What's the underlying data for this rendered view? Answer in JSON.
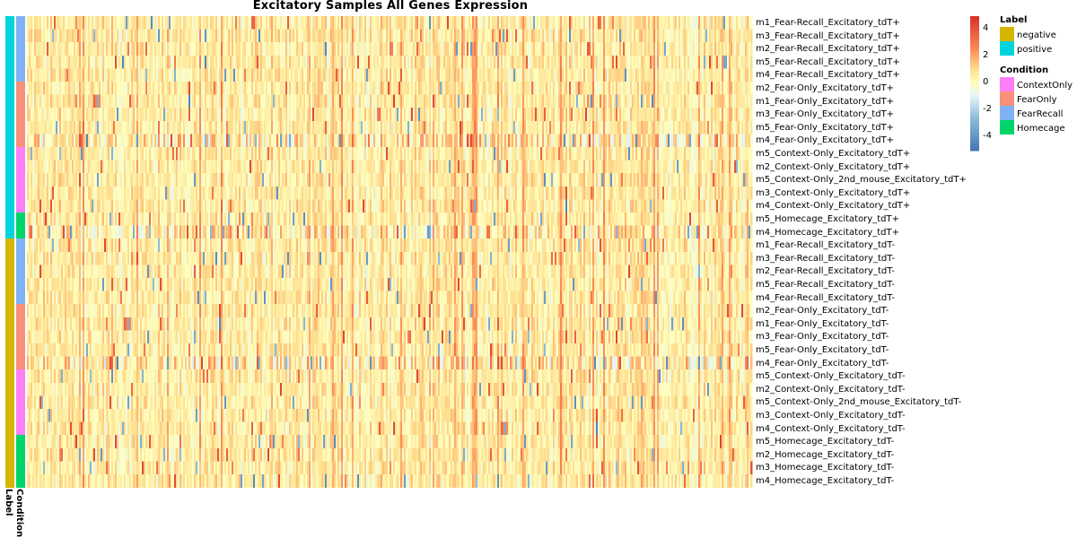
{
  "chart_data": {
    "type": "heatmap",
    "title": "Excitatory Samples All Genes Expression",
    "color_scale": {
      "min": -5,
      "max": 5,
      "low_color": "#4575b4",
      "mid_color": "#ffffbf",
      "high_color": "#d73027",
      "ticks": [
        "4",
        "2",
        "0",
        "-2",
        "-4"
      ]
    },
    "annotation_columns": [
      "Label",
      "Condition"
    ],
    "legends": {
      "label": {
        "title": "Label",
        "items": [
          {
            "name": "negative",
            "color": "#d4b600"
          },
          {
            "name": "positive",
            "color": "#00d4dc"
          }
        ]
      },
      "condition": {
        "title": "Condition",
        "items": [
          {
            "name": "ContextOnly",
            "color": "#ff7ff6"
          },
          {
            "name": "FearOnly",
            "color": "#f8907c"
          },
          {
            "name": "FearRecall",
            "color": "#7fb2f5"
          },
          {
            "name": "Homecage",
            "color": "#00d56a"
          }
        ]
      }
    },
    "rows": [
      {
        "name": "m1_Fear-Recall_Excitatory_tdT+",
        "label": "positive",
        "condition": "FearRecall"
      },
      {
        "name": "m3_Fear-Recall_Excitatory_tdT+",
        "label": "positive",
        "condition": "FearRecall"
      },
      {
        "name": "m2_Fear-Recall_Excitatory_tdT+",
        "label": "positive",
        "condition": "FearRecall"
      },
      {
        "name": "m5_Fear-Recall_Excitatory_tdT+",
        "label": "positive",
        "condition": "FearRecall"
      },
      {
        "name": "m4_Fear-Recall_Excitatory_tdT+",
        "label": "positive",
        "condition": "FearRecall"
      },
      {
        "name": "m2_Fear-Only_Excitatory_tdT+",
        "label": "positive",
        "condition": "FearOnly"
      },
      {
        "name": "m1_Fear-Only_Excitatory_tdT+",
        "label": "positive",
        "condition": "FearOnly"
      },
      {
        "name": "m3_Fear-Only_Excitatory_tdT+",
        "label": "positive",
        "condition": "FearOnly"
      },
      {
        "name": "m5_Fear-Only_Excitatory_tdT+",
        "label": "positive",
        "condition": "FearOnly"
      },
      {
        "name": "m4_Fear-Only_Excitatory_tdT+",
        "label": "positive",
        "condition": "FearOnly"
      },
      {
        "name": "m5_Context-Only_Excitatory_tdT+",
        "label": "positive",
        "condition": "ContextOnly"
      },
      {
        "name": "m2_Context-Only_Excitatory_tdT+",
        "label": "positive",
        "condition": "ContextOnly"
      },
      {
        "name": "m5_Context-Only_2nd_mouse_Excitatory_tdT+",
        "label": "positive",
        "condition": "ContextOnly"
      },
      {
        "name": "m3_Context-Only_Excitatory_tdT+",
        "label": "positive",
        "condition": "ContextOnly"
      },
      {
        "name": "m4_Context-Only_Excitatory_tdT+",
        "label": "positive",
        "condition": "ContextOnly"
      },
      {
        "name": "m5_Homecage_Excitatory_tdT+",
        "label": "positive",
        "condition": "Homecage"
      },
      {
        "name": "m4_Homecage_Excitatory_tdT+",
        "label": "positive",
        "condition": "Homecage"
      },
      {
        "name": "m1_Fear-Recall_Excitatory_tdT-",
        "label": "negative",
        "condition": "FearRecall"
      },
      {
        "name": "m3_Fear-Recall_Excitatory_tdT-",
        "label": "negative",
        "condition": "FearRecall"
      },
      {
        "name": "m2_Fear-Recall_Excitatory_tdT-",
        "label": "negative",
        "condition": "FearRecall"
      },
      {
        "name": "m5_Fear-Recall_Excitatory_tdT-",
        "label": "negative",
        "condition": "FearRecall"
      },
      {
        "name": "m4_Fear-Recall_Excitatory_tdT-",
        "label": "negative",
        "condition": "FearRecall"
      },
      {
        "name": "m2_Fear-Only_Excitatory_tdT-",
        "label": "negative",
        "condition": "FearOnly"
      },
      {
        "name": "m1_Fear-Only_Excitatory_tdT-",
        "label": "negative",
        "condition": "FearOnly"
      },
      {
        "name": "m3_Fear-Only_Excitatory_tdT-",
        "label": "negative",
        "condition": "FearOnly"
      },
      {
        "name": "m5_Fear-Only_Excitatory_tdT-",
        "label": "negative",
        "condition": "FearOnly"
      },
      {
        "name": "m4_Fear-Only_Excitatory_tdT-",
        "label": "negative",
        "condition": "FearOnly"
      },
      {
        "name": "m5_Context-Only_Excitatory_tdT-",
        "label": "negative",
        "condition": "ContextOnly"
      },
      {
        "name": "m2_Context-Only_Excitatory_tdT-",
        "label": "negative",
        "condition": "ContextOnly"
      },
      {
        "name": "m5_Context-Only_2nd_mouse_Excitatory_tdT-",
        "label": "negative",
        "condition": "ContextOnly"
      },
      {
        "name": "m3_Context-Only_Excitatory_tdT-",
        "label": "negative",
        "condition": "ContextOnly"
      },
      {
        "name": "m4_Context-Only_Excitatory_tdT-",
        "label": "negative",
        "condition": "ContextOnly"
      },
      {
        "name": "m5_Homecage_Excitatory_tdT-",
        "label": "negative",
        "condition": "Homecage"
      },
      {
        "name": "m2_Homecage_Excitatory_tdT-",
        "label": "negative",
        "condition": "Homecage"
      },
      {
        "name": "m3_Homecage_Excitatory_tdT-",
        "label": "negative",
        "condition": "Homecage"
      },
      {
        "name": "m4_Homecage_Excitatory_tdT-",
        "label": "negative",
        "condition": "Homecage"
      }
    ]
  }
}
